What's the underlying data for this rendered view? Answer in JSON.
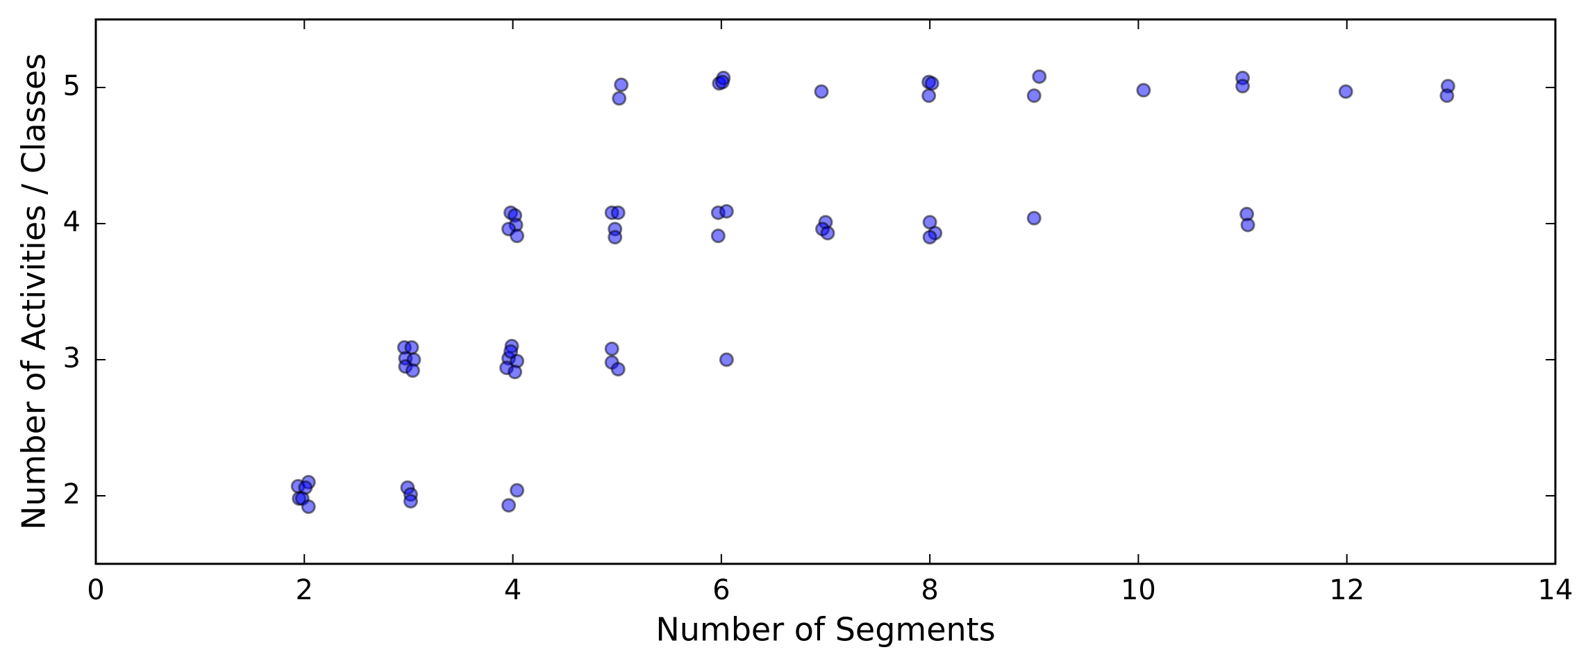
{
  "chart_data": {
    "type": "scatter",
    "x_label": "Number of Segments",
    "y_label": "Number of Activities / Classes",
    "x": [
      5.04,
      5.02,
      5.98,
      6.02,
      6.01,
      6.96,
      7.99,
      8.02,
      7.99,
      9.05,
      9.0,
      10.05,
      11.0,
      11.0,
      11.99,
      12.97,
      12.96,
      3.98,
      4.02,
      4.03,
      3.96,
      4.04,
      4.95,
      5.01,
      4.98,
      4.98,
      5.97,
      6.05,
      5.97,
      7.0,
      6.97,
      7.02,
      8.0,
      8.05,
      8.0,
      9.0,
      11.04,
      11.05,
      2.96,
      3.03,
      2.97,
      3.05,
      2.97,
      3.04,
      3.99,
      3.96,
      4.04,
      3.94,
      4.02,
      3.98,
      4.95,
      4.95,
      5.01,
      6.05,
      1.94,
      2.04,
      2.01,
      1.95,
      1.98,
      2.04,
      2.99,
      3.02,
      3.02,
      4.04,
      3.96
    ],
    "values": [
      5.02,
      4.92,
      5.03,
      5.07,
      5.04,
      4.97,
      5.04,
      5.03,
      4.94,
      5.08,
      4.94,
      4.98,
      5.07,
      5.01,
      4.97,
      5.01,
      4.94,
      4.08,
      4.06,
      3.99,
      3.96,
      3.91,
      4.08,
      4.08,
      3.96,
      3.9,
      4.08,
      4.09,
      3.91,
      4.01,
      3.96,
      3.93,
      4.01,
      3.93,
      3.9,
      4.04,
      4.07,
      3.99,
      3.09,
      3.09,
      3.01,
      3.0,
      2.95,
      2.92,
      3.1,
      3.01,
      2.99,
      2.94,
      2.91,
      3.06,
      3.08,
      2.98,
      2.93,
      3.0,
      2.07,
      2.1,
      2.06,
      1.98,
      1.98,
      1.92,
      2.06,
      2.01,
      1.96,
      2.04,
      1.93
    ],
    "color": "#0000ff",
    "alpha": 0.5,
    "xlim": [
      0,
      14
    ],
    "xticks": [
      0,
      2,
      4,
      6,
      8,
      10,
      12,
      14
    ],
    "ylim": [
      1.5,
      5.5
    ],
    "yticks": [
      2,
      3,
      4,
      5
    ]
  }
}
